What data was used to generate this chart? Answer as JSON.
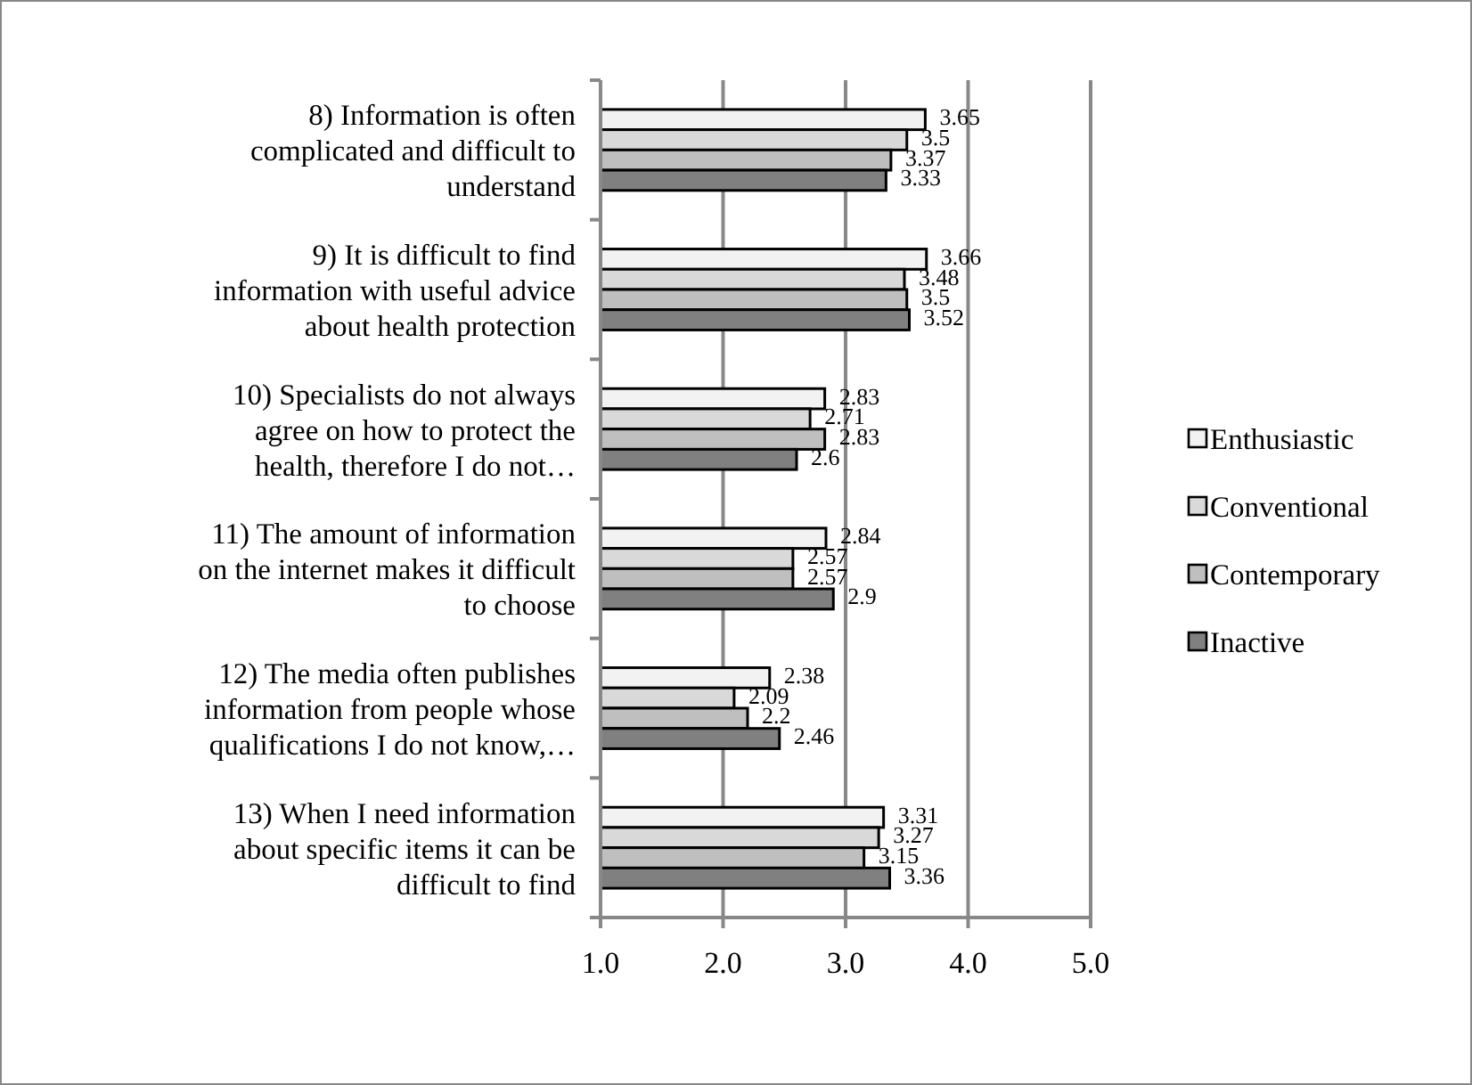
{
  "chart_data": {
    "type": "bar",
    "orientation": "horizontal",
    "categories": [
      "8) Information is often\ncomplicated and difficult to\nunderstand",
      "9) It is difficult to find\ninformation with useful advice\nabout health protection",
      "10) Specialists do not always\nagree on how to protect the\nhealth, therefore I do not…",
      "11) The amount of information\non the internet makes it difficult\nto choose",
      "12) The media often publishes\ninformation from people whose\nqualifications I do not know,…",
      "13) When I need information\nabout specific items it can be\ndifficult to find"
    ],
    "series": [
      {
        "name": "Enthusiastic",
        "color": "#f2f2f2",
        "values": [
          3.65,
          3.66,
          2.83,
          2.84,
          2.38,
          3.31
        ]
      },
      {
        "name": "Conventional",
        "color": "#d9d9d9",
        "values": [
          3.5,
          3.48,
          2.71,
          2.57,
          2.09,
          3.27
        ]
      },
      {
        "name": "Contemporary",
        "color": "#bfbfbf",
        "values": [
          3.37,
          3.5,
          2.83,
          2.57,
          2.2,
          3.15
        ]
      },
      {
        "name": "Inactive",
        "color": "#808080",
        "values": [
          3.33,
          3.52,
          2.6,
          2.9,
          2.46,
          3.36
        ]
      }
    ],
    "xlim": [
      1,
      5
    ],
    "xticks": [
      {
        "value": 1,
        "label": "1.0"
      },
      {
        "value": 2,
        "label": "2.0"
      },
      {
        "value": 3,
        "label": "3.0"
      },
      {
        "value": 4,
        "label": "4.0"
      },
      {
        "value": 5,
        "label": "5.0"
      }
    ],
    "grid": "x",
    "legend": "right",
    "data_labels": true
  }
}
